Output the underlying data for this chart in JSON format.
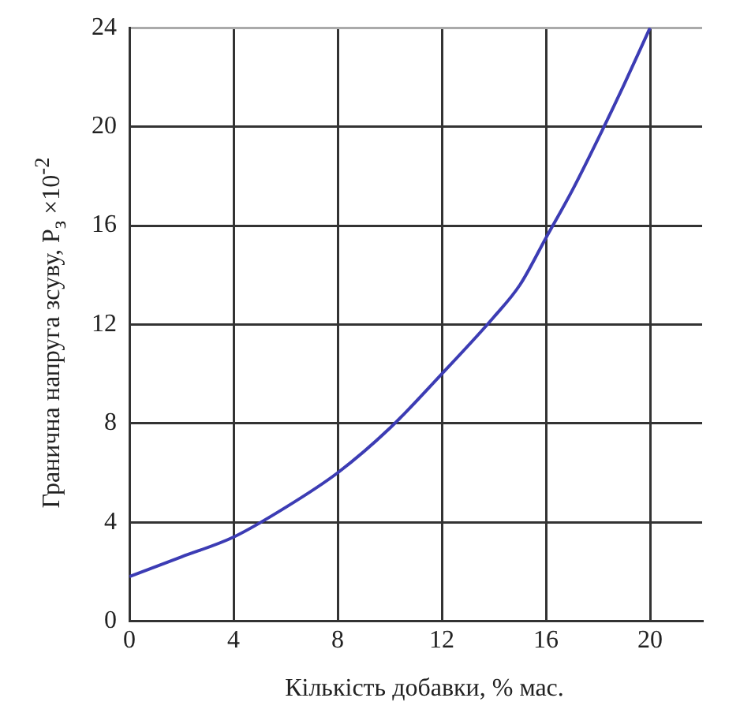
{
  "chart_data": {
    "type": "line",
    "xlabel": "Кількість добавки, % мас.",
    "ylabel": "Гранична напруга зсуву, P$_{з}$ ×10$^{-2}$",
    "x": [
      0,
      2,
      4,
      6,
      8,
      10,
      12,
      14,
      15,
      16,
      17,
      18,
      19,
      20
    ],
    "series": [
      {
        "color": "#3c3cb4",
        "values": [
          1.8,
          2.6,
          3.4,
          4.6,
          6.0,
          7.8,
          10.0,
          12.3,
          13.6,
          15.5,
          17.4,
          19.5,
          21.7,
          24.0
        ]
      }
    ],
    "xlim": [
      0,
      22
    ],
    "xticks": [
      0,
      4,
      8,
      12,
      16,
      20
    ],
    "ylim": [
      0,
      24
    ],
    "yticks": [
      0,
      4,
      8,
      12,
      16,
      20,
      24
    ],
    "grid": true,
    "legend": false,
    "marker": "none",
    "line_style": "solid"
  }
}
